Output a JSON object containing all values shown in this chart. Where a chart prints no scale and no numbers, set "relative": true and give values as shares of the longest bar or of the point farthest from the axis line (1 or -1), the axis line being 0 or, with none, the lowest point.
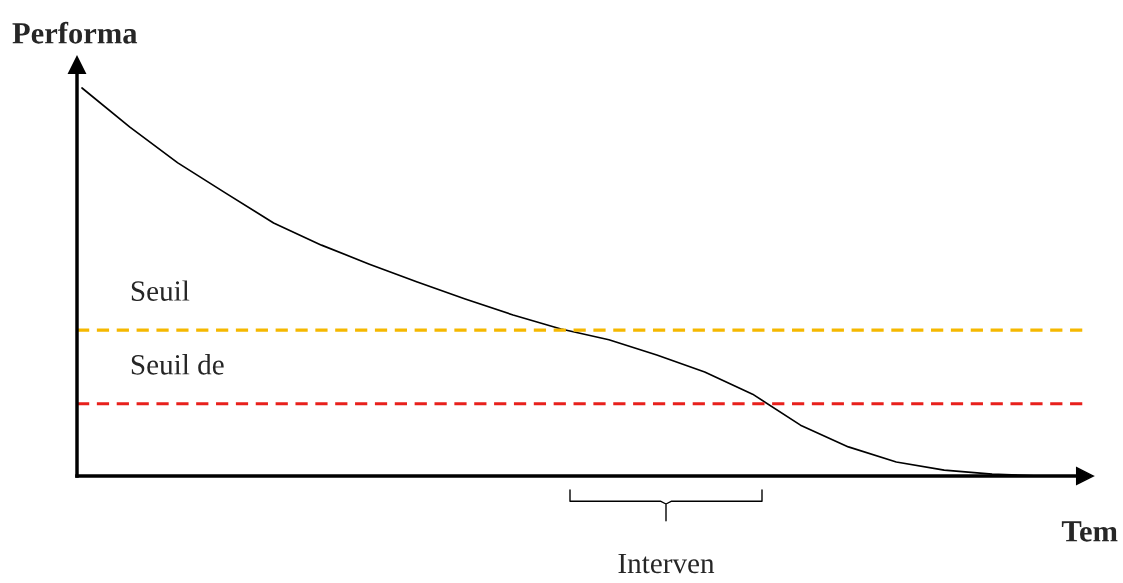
{
  "chart_data": {
    "type": "line",
    "relative": true,
    "ylabel": "Performa",
    "xlabel": "Tem",
    "categories": [
      null,
      null,
      null,
      null,
      null,
      null,
      null,
      null,
      null,
      null,
      null,
      null,
      null,
      null,
      null,
      null,
      null,
      null,
      null,
      null,
      null
    ],
    "series": [
      {
        "color": "#000000",
        "values": [
          1.0,
          0.899,
          0.807,
          0.729,
          0.652,
          0.595,
          0.546,
          0.5,
          0.456,
          0.415,
          0.379,
          0.351,
          0.312,
          0.268,
          0.211,
          0.131,
          0.075,
          0.036,
          0.015,
          0.005,
          0.0
        ]
      }
    ],
    "ref_lines": [
      {
        "axis": "y",
        "value": 0.376,
        "label": "Seuil",
        "color": "#f5b800",
        "line_style": "dashed"
      },
      {
        "axis": "y",
        "value": 0.186,
        "label": "Seuil de",
        "color": "#e8201c",
        "line_style": "dashed"
      }
    ],
    "annotations": [
      "Interven"
    ],
    "marker": "none",
    "line_style": "solid",
    "legend": false
  }
}
